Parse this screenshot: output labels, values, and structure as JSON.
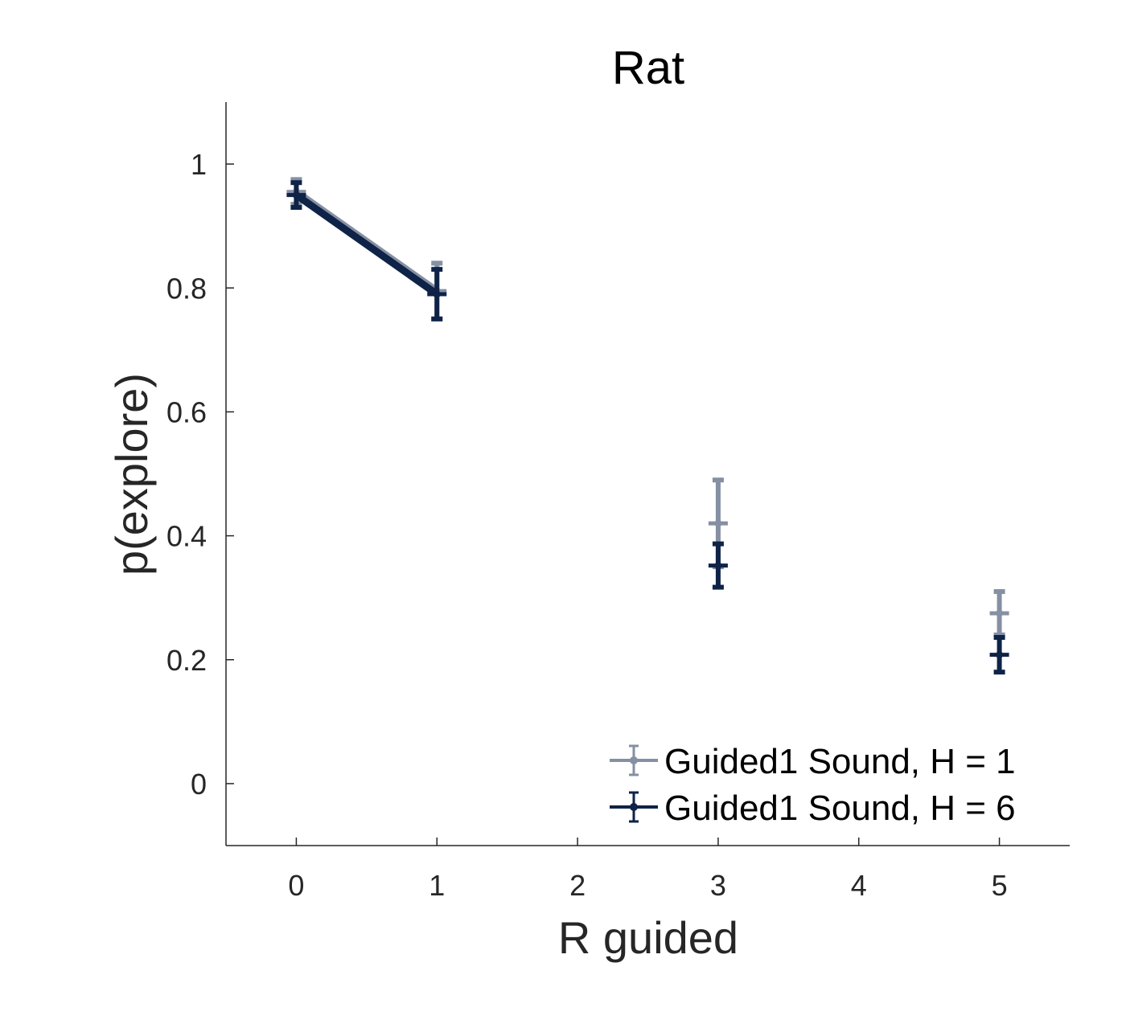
{
  "chart_data": {
    "type": "line",
    "title": "Rat",
    "xlabel": "R guided",
    "ylabel": "p(explore)",
    "xlim": [
      -0.5,
      5.5
    ],
    "ylim": [
      -0.1,
      1.1
    ],
    "xticks": [
      0,
      1,
      2,
      3,
      4,
      5
    ],
    "yticks": [
      0,
      0.2,
      0.4,
      0.6,
      0.8,
      1
    ],
    "xtick_labels": [
      "0",
      "1",
      "2",
      "3",
      "4",
      "5"
    ],
    "ytick_labels": [
      "0",
      "0.2",
      "0.4",
      "0.6",
      "0.8",
      "1"
    ],
    "grid": false,
    "legend_position": "bottom-right",
    "series": [
      {
        "name": "Guided1 Sound, H = 1",
        "color": "#8590a3",
        "x": [
          0,
          1,
          3,
          5
        ],
        "y": [
          0.955,
          0.795,
          0.42,
          0.275
        ],
        "err": [
          0.02,
          0.045,
          0.07,
          0.035
        ],
        "connect_first_n": 2
      },
      {
        "name": "Guided1 Sound, H = 6",
        "color": "#0e2347",
        "x": [
          0,
          1,
          3,
          5
        ],
        "y": [
          0.95,
          0.79,
          0.352,
          0.208
        ],
        "err": [
          0.02,
          0.04,
          0.035,
          0.028
        ],
        "connect_first_n": 2
      }
    ]
  }
}
